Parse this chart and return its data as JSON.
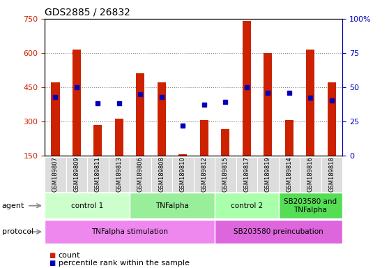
{
  "title": "GDS2885 / 26832",
  "samples": [
    "GSM189807",
    "GSM189809",
    "GSM189811",
    "GSM189813",
    "GSM189806",
    "GSM189808",
    "GSM189810",
    "GSM189812",
    "GSM189815",
    "GSM189817",
    "GSM189819",
    "GSM189814",
    "GSM189816",
    "GSM189818"
  ],
  "counts": [
    470,
    615,
    285,
    310,
    510,
    470,
    155,
    305,
    265,
    740,
    600,
    305,
    615,
    470
  ],
  "percentile_ranks": [
    43,
    50,
    38,
    38,
    45,
    43,
    22,
    37,
    39,
    50,
    46,
    46,
    42,
    40
  ],
  "ylim_left": [
    150,
    750
  ],
  "ylim_right": [
    0,
    100
  ],
  "yticks_left": [
    150,
    300,
    450,
    600,
    750
  ],
  "yticks_right": [
    0,
    25,
    50,
    75,
    100
  ],
  "bar_color": "#cc2200",
  "dot_color": "#0000bb",
  "agent_groups": [
    {
      "label": "control 1",
      "start": 0,
      "end": 3,
      "color": "#ccffcc"
    },
    {
      "label": "TNFalpha",
      "start": 4,
      "end": 7,
      "color": "#99ee99"
    },
    {
      "label": "control 2",
      "start": 8,
      "end": 10,
      "color": "#aaffaa"
    },
    {
      "label": "SB203580 and\nTNFalpha",
      "start": 11,
      "end": 13,
      "color": "#55dd55"
    }
  ],
  "protocol_groups": [
    {
      "label": "TNFalpha stimulation",
      "start": 0,
      "end": 7,
      "color": "#ee88ee"
    },
    {
      "label": "SB203580 preincubation",
      "start": 8,
      "end": 13,
      "color": "#dd66dd"
    }
  ],
  "legend_count_label": "count",
  "legend_pct_label": "percentile rank within the sample"
}
